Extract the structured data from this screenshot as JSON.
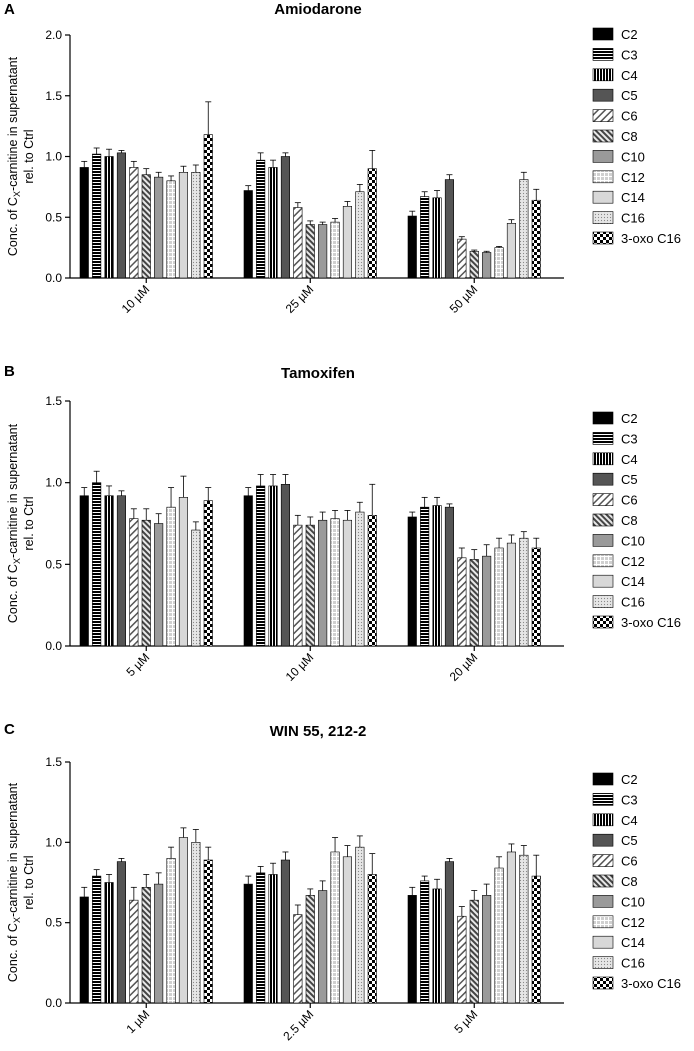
{
  "chart_data": [
    {
      "type": "bar",
      "panel": "A",
      "title": "Amiodarone",
      "ylabel_line1": "Conc. of Cx-carnitine in supernatant",
      "ylabel_line2": "rel. to Ctrl",
      "ylim": [
        0,
        2.0
      ],
      "yticks": [
        "0.0",
        "0.5",
        "1.0",
        "1.5",
        "2.0"
      ],
      "categories": [
        "10 µM",
        "25 µM",
        "50 µM"
      ],
      "series": [
        {
          "name": "C2",
          "values": [
            0.91,
            0.72,
            0.51
          ],
          "errors": [
            0.05,
            0.04,
            0.04
          ]
        },
        {
          "name": "C3",
          "values": [
            1.02,
            0.97,
            0.67
          ],
          "errors": [
            0.05,
            0.06,
            0.04
          ]
        },
        {
          "name": "C4",
          "values": [
            1.0,
            0.91,
            0.66
          ],
          "errors": [
            0.06,
            0.06,
            0.06
          ]
        },
        {
          "name": "C5",
          "values": [
            1.03,
            1.0,
            0.81
          ],
          "errors": [
            0.02,
            0.03,
            0.04
          ]
        },
        {
          "name": "C6",
          "values": [
            0.91,
            0.58,
            0.32
          ],
          "errors": [
            0.05,
            0.04,
            0.02
          ]
        },
        {
          "name": "C8",
          "values": [
            0.85,
            0.44,
            0.22
          ],
          "errors": [
            0.05,
            0.03,
            0.01
          ]
        },
        {
          "name": "C10",
          "values": [
            0.83,
            0.44,
            0.21
          ],
          "errors": [
            0.04,
            0.02,
            0.01
          ]
        },
        {
          "name": "C12",
          "values": [
            0.8,
            0.46,
            0.25
          ],
          "errors": [
            0.04,
            0.03,
            0.01
          ]
        },
        {
          "name": "C14",
          "values": [
            0.87,
            0.59,
            0.45
          ],
          "errors": [
            0.05,
            0.04,
            0.03
          ]
        },
        {
          "name": "C16",
          "values": [
            0.87,
            0.71,
            0.81
          ],
          "errors": [
            0.06,
            0.06,
            0.06
          ]
        },
        {
          "name": "3-oxo C16",
          "values": [
            1.18,
            0.9,
            0.64
          ],
          "errors": [
            0.27,
            0.15,
            0.09
          ]
        }
      ]
    },
    {
      "type": "bar",
      "panel": "B",
      "title": "Tamoxifen",
      "ylabel_line1": "Conc. of Cx-carnitine in supernatant",
      "ylabel_line2": "rel. to Ctrl",
      "ylim": [
        0,
        1.5
      ],
      "yticks": [
        "0.0",
        "0.5",
        "1.0",
        "1.5"
      ],
      "categories": [
        "5 µM",
        "10 µM",
        "20 µM"
      ],
      "series": [
        {
          "name": "C2",
          "values": [
            0.92,
            0.92,
            0.79
          ],
          "errors": [
            0.05,
            0.05,
            0.03
          ]
        },
        {
          "name": "C3",
          "values": [
            1.0,
            0.98,
            0.85
          ],
          "errors": [
            0.07,
            0.07,
            0.06
          ]
        },
        {
          "name": "C4",
          "values": [
            0.92,
            0.98,
            0.86
          ],
          "errors": [
            0.06,
            0.07,
            0.05
          ]
        },
        {
          "name": "C5",
          "values": [
            0.92,
            0.99,
            0.85
          ],
          "errors": [
            0.03,
            0.06,
            0.02
          ]
        },
        {
          "name": "C6",
          "values": [
            0.78,
            0.74,
            0.54
          ],
          "errors": [
            0.06,
            0.06,
            0.06
          ]
        },
        {
          "name": "C8",
          "values": [
            0.77,
            0.74,
            0.53
          ],
          "errors": [
            0.07,
            0.05,
            0.06
          ]
        },
        {
          "name": "C10",
          "values": [
            0.75,
            0.77,
            0.55
          ],
          "errors": [
            0.06,
            0.05,
            0.07
          ]
        },
        {
          "name": "C12",
          "values": [
            0.85,
            0.78,
            0.6
          ],
          "errors": [
            0.12,
            0.05,
            0.06
          ]
        },
        {
          "name": "C14",
          "values": [
            0.91,
            0.77,
            0.63
          ],
          "errors": [
            0.13,
            0.06,
            0.05
          ]
        },
        {
          "name": "C16",
          "values": [
            0.71,
            0.82,
            0.66
          ],
          "errors": [
            0.05,
            0.06,
            0.04
          ]
        },
        {
          "name": "3-oxo C16",
          "values": [
            0.89,
            0.8,
            0.6
          ],
          "errors": [
            0.08,
            0.19,
            0.06
          ]
        }
      ]
    },
    {
      "type": "bar",
      "panel": "C",
      "title": "WIN 55, 212-2",
      "ylabel_line1": "Conc. of Cx-carnitine in supernatant",
      "ylabel_line2": "rel. to Ctrl",
      "ylim": [
        0,
        1.5
      ],
      "yticks": [
        "0.0",
        "0.5",
        "1.0",
        "1.5"
      ],
      "categories": [
        "1 µM",
        "2.5 µM",
        "5 µM"
      ],
      "series": [
        {
          "name": "C2",
          "values": [
            0.66,
            0.74,
            0.67
          ],
          "errors": [
            0.06,
            0.05,
            0.05
          ]
        },
        {
          "name": "C3",
          "values": [
            0.79,
            0.81,
            0.76
          ],
          "errors": [
            0.04,
            0.04,
            0.03
          ]
        },
        {
          "name": "C4",
          "values": [
            0.75,
            0.8,
            0.71
          ],
          "errors": [
            0.05,
            0.07,
            0.06
          ]
        },
        {
          "name": "C5",
          "values": [
            0.88,
            0.89,
            0.88
          ],
          "errors": [
            0.02,
            0.05,
            0.02
          ]
        },
        {
          "name": "C6",
          "values": [
            0.64,
            0.55,
            0.54
          ],
          "errors": [
            0.08,
            0.06,
            0.06
          ]
        },
        {
          "name": "C8",
          "values": [
            0.72,
            0.67,
            0.64
          ],
          "errors": [
            0.08,
            0.04,
            0.06
          ]
        },
        {
          "name": "C10",
          "values": [
            0.74,
            0.7,
            0.67
          ],
          "errors": [
            0.07,
            0.06,
            0.07
          ]
        },
        {
          "name": "C12",
          "values": [
            0.9,
            0.94,
            0.84
          ],
          "errors": [
            0.07,
            0.09,
            0.07
          ]
        },
        {
          "name": "C14",
          "values": [
            1.03,
            0.91,
            0.94
          ],
          "errors": [
            0.06,
            0.07,
            0.05
          ]
        },
        {
          "name": "C16",
          "values": [
            1.0,
            0.97,
            0.92
          ],
          "errors": [
            0.08,
            0.07,
            0.06
          ]
        },
        {
          "name": "3-oxo C16",
          "values": [
            0.89,
            0.8,
            0.79
          ],
          "errors": [
            0.08,
            0.13,
            0.13
          ]
        }
      ]
    }
  ],
  "legend_placement": "right",
  "grid": false,
  "fill_patterns": {
    "C2": "solid-black",
    "C3": "horizontal-stripes",
    "C4": "vertical-stripes",
    "C5": "solid-dark-gray",
    "C6": "diagonal-hatch",
    "C8": "dense-diagonal-hatch",
    "C10": "solid-gray",
    "C12": "grid-light",
    "C14": "solid-light-gray",
    "C16": "dotted-light",
    "3-oxo C16": "checkerboard"
  },
  "colors": {
    "axis": "#000000",
    "dark_gray": "#555555",
    "gray": "#9a9a9a",
    "light_gray": "#d8d8d8"
  }
}
